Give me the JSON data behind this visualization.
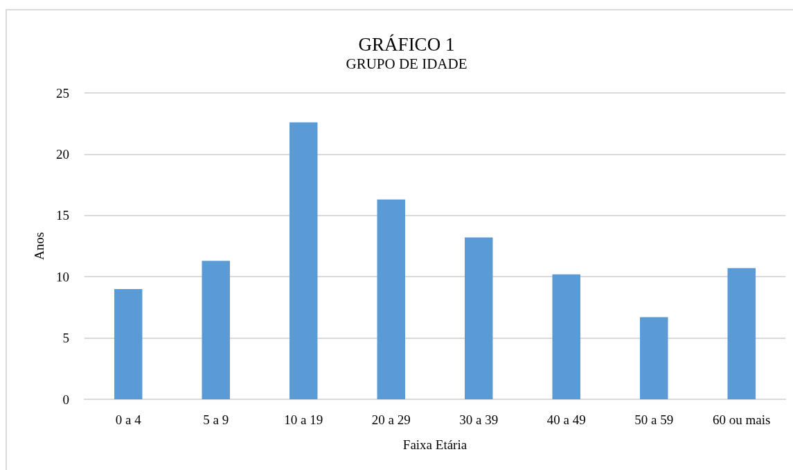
{
  "chart_data": {
    "type": "bar",
    "title": "GRÁFICO 1",
    "subtitle": "GRUPO DE IDADE",
    "xlabel": "Faixa Etária",
    "ylabel": "Anos",
    "categories": [
      "0 a 4",
      "5 a 9",
      "10 a 19",
      "20 a 29",
      "30 a 39",
      "40 a 49",
      "50 a 59",
      "60 ou mais"
    ],
    "values": [
      9.0,
      11.3,
      22.6,
      16.3,
      13.2,
      10.2,
      6.7,
      10.7
    ],
    "color": "#5b9bd5",
    "ylim": [
      0,
      25
    ],
    "yticks": [
      0,
      5,
      10,
      15,
      20,
      25
    ],
    "grid": "y"
  }
}
